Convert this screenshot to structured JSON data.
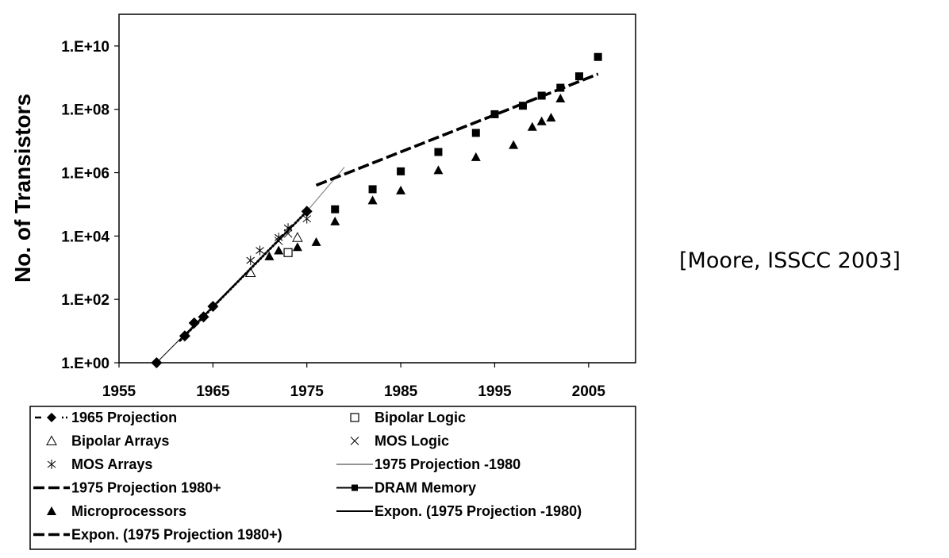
{
  "citation": "[Moore, ISSCC 2003]",
  "chart_data": {
    "type": "scatter",
    "title": "",
    "xlabel": "",
    "ylabel": "No. of Transistors",
    "y_scale": "log10",
    "xlim": [
      1955,
      2010
    ],
    "ylim": [
      1,
      100000000000
    ],
    "x_ticks": [
      "1955",
      "1965",
      "1975",
      "1985",
      "1995",
      "2005"
    ],
    "y_ticks": [
      "1.E+00",
      "1.E+02",
      "1.E+04",
      "1.E+06",
      "1.E+08",
      "1.E+10"
    ],
    "grid": false,
    "legend_placement": "bottom",
    "series": [
      {
        "name": "1965 Projection",
        "marker": "diamond",
        "line": "dotted",
        "points": [
          [
            1959,
            1
          ],
          [
            1962,
            7
          ],
          [
            1963,
            18
          ],
          [
            1964,
            28
          ],
          [
            1965,
            60
          ],
          [
            1975,
            60000
          ]
        ]
      },
      {
        "name": "Bipolar Logic",
        "marker": "open-square",
        "points": [
          [
            1973,
            3000
          ]
        ]
      },
      {
        "name": "Bipolar Arrays",
        "marker": "open-triangle",
        "points": [
          [
            1969,
            700
          ],
          [
            1974,
            9000
          ]
        ]
      },
      {
        "name": "MOS Logic",
        "marker": "x",
        "points": [
          [
            1972,
            7000
          ],
          [
            1973,
            12000
          ]
        ]
      },
      {
        "name": "MOS Arrays",
        "marker": "asterisk",
        "points": [
          [
            1969,
            1700
          ],
          [
            1970,
            3500
          ],
          [
            1972,
            9000
          ],
          [
            1973,
            18000
          ],
          [
            1975,
            35000
          ]
        ]
      },
      {
        "name": "1975 Projection -1980",
        "marker": "none",
        "line": "thin",
        "points": [
          [
            1975,
            60000
          ],
          [
            1979,
            1500000
          ]
        ]
      },
      {
        "name": "1975 Projection 1980+",
        "marker": "none",
        "line": "dashed",
        "points": [
          [
            1976,
            400000
          ],
          [
            2006,
            1300000000
          ]
        ]
      },
      {
        "name": "DRAM Memory",
        "marker": "square",
        "points": [
          [
            1978,
            70000
          ],
          [
            1982,
            300000
          ],
          [
            1985,
            1100000
          ],
          [
            1989,
            4500000
          ],
          [
            1993,
            18000000
          ],
          [
            1995,
            70000000
          ],
          [
            1998,
            130000000
          ],
          [
            2000,
            270000000
          ],
          [
            2002,
            480000000
          ],
          [
            2004,
            1100000000
          ],
          [
            2006,
            4500000000
          ]
        ]
      },
      {
        "name": "Microprocessors",
        "marker": "triangle",
        "points": [
          [
            1971,
            2300
          ],
          [
            1972,
            3500
          ],
          [
            1974,
            4500
          ],
          [
            1976,
            6500
          ],
          [
            1978,
            29000
          ],
          [
            1982,
            134000
          ],
          [
            1985,
            275000
          ],
          [
            1989,
            1200000
          ],
          [
            1993,
            3100000
          ],
          [
            1997,
            7500000
          ],
          [
            1999,
            28000000
          ],
          [
            2000,
            42000000
          ],
          [
            2001,
            55000000
          ],
          [
            2002,
            220000000
          ]
        ]
      },
      {
        "name": "Expon. (1975 Projection -1980)",
        "marker": "none",
        "line": "solid",
        "points": [
          [
            1959,
            1
          ],
          [
            1975,
            60000
          ]
        ]
      },
      {
        "name": "Expon. (1975 Projection 1980+)",
        "marker": "none",
        "line": "dashed",
        "points": [
          [
            1976,
            400000
          ],
          [
            2006,
            1300000000
          ]
        ]
      }
    ]
  },
  "legend": {
    "items": [
      "1965 Projection",
      "Bipolar Logic",
      "Bipolar Arrays",
      "MOS Logic",
      "MOS Arrays",
      "1975 Projection -1980",
      "1975 Projection 1980+",
      "DRAM Memory",
      "Microprocessors",
      "Expon. (1975 Projection -1980)",
      "Expon. (1975 Projection 1980+)"
    ]
  }
}
